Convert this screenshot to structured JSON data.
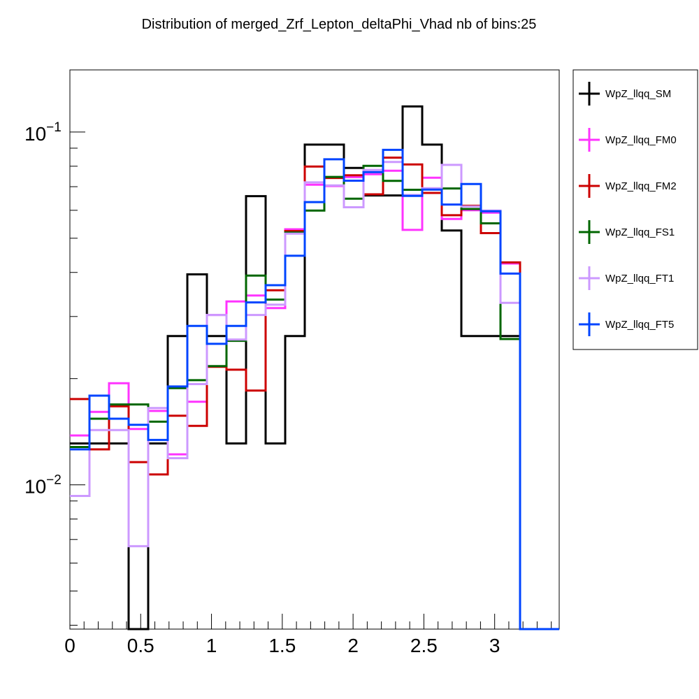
{
  "chart_data": {
    "type": "line",
    "title": "Distribution of merged_Zrf_Lepton_deltaPhi_Vhad nb of bins:25",
    "xlabel": "",
    "ylabel": "",
    "x_scale": "linear",
    "y_scale": "log",
    "xlim": [
      0,
      3.4558
    ],
    "ylim": [
      0.0039,
      0.15
    ],
    "grid": false,
    "legend_position": "right",
    "x_ticks": [
      "0",
      "0.5",
      "1",
      "1.5",
      "2",
      "2.5",
      "3"
    ],
    "x_tick_values": [
      0,
      0.5,
      1,
      1.5,
      2,
      2.5,
      3
    ],
    "y_ticks": [
      {
        "value": 0.1,
        "base": "10",
        "exp": "−1"
      },
      {
        "value": 0.01,
        "base": "10",
        "exp": "−2"
      }
    ],
    "bin_edges": [
      0,
      0.1382,
      0.2765,
      0.4147,
      0.5529,
      0.6912,
      0.8294,
      0.9676,
      1.1059,
      1.2441,
      1.3823,
      1.5206,
      1.6588,
      1.797,
      1.9353,
      2.0735,
      2.2117,
      2.35,
      2.4882,
      2.6264,
      2.7647,
      2.9029,
      3.0411,
      3.1794,
      3.3176,
      3.4558
    ],
    "series": [
      {
        "name": "WpZ_llqq_SM",
        "color": "#000000",
        "values": [
          0.0131,
          0.0131,
          0.0131,
          0.003,
          0.0131,
          0.0264,
          0.0395,
          0.0264,
          0.0131,
          0.0658,
          0.0131,
          0.0264,
          0.0921,
          0.0921,
          0.0791,
          0.0661,
          0.0661,
          0.1182,
          0.0921,
          0.0526,
          0.0264,
          0.0264,
          0.0264,
          0.0,
          0.0
        ]
      },
      {
        "name": "WpZ_llqq_FM0",
        "color": "#ff33ff",
        "values": [
          0.0138,
          0.0161,
          0.0194,
          0.0144,
          0.0162,
          0.0122,
          0.0172,
          0.0303,
          0.0331,
          0.0344,
          0.0317,
          0.053,
          0.0709,
          0.0703,
          0.0745,
          0.0759,
          0.0777,
          0.0528,
          0.0742,
          0.0567,
          0.06,
          0.0591,
          0.0424,
          0.0,
          0.0
        ]
      },
      {
        "name": "WpZ_llqq_FM2",
        "color": "#cc0000",
        "values": [
          0.0175,
          0.0126,
          0.0167,
          0.0116,
          0.0107,
          0.0157,
          0.0147,
          0.0216,
          0.0212,
          0.0185,
          0.0356,
          0.0524,
          0.0798,
          0.0741,
          0.0754,
          0.0666,
          0.0846,
          0.0809,
          0.0672,
          0.0581,
          0.0618,
          0.0517,
          0.0427,
          0.0,
          0.0
        ]
      },
      {
        "name": "WpZ_llqq_FS1",
        "color": "#006600",
        "values": [
          0.0128,
          0.0154,
          0.0169,
          0.0169,
          0.0151,
          0.0188,
          0.0198,
          0.0217,
          0.0256,
          0.0392,
          0.0335,
          0.0519,
          0.0599,
          0.0746,
          0.0647,
          0.0802,
          0.0727,
          0.0686,
          0.069,
          0.0692,
          0.0605,
          0.0551,
          0.0259,
          0.0,
          0.0
        ]
      },
      {
        "name": "WpZ_llqq_FT1",
        "color": "#cc99ff",
        "values": [
          0.0093,
          0.0143,
          0.0143,
          0.0067,
          0.0165,
          0.0119,
          0.0193,
          0.0303,
          0.0258,
          0.0303,
          0.0324,
          0.0515,
          0.072,
          0.0706,
          0.0612,
          0.0781,
          0.0822,
          0.0663,
          0.0693,
          0.0807,
          0.0615,
          0.0599,
          0.0328,
          0.0,
          0.0
        ]
      },
      {
        "name": "WpZ_llqq_FT5",
        "color": "#0044ff",
        "values": [
          0.0126,
          0.0179,
          0.0154,
          0.0148,
          0.0134,
          0.019,
          0.0282,
          0.0251,
          0.0282,
          0.0329,
          0.0368,
          0.0446,
          0.0633,
          0.0837,
          0.0728,
          0.077,
          0.089,
          0.0659,
          0.0687,
          0.0623,
          0.0712,
          0.0596,
          0.0397,
          0.0,
          0.0
        ]
      }
    ]
  }
}
